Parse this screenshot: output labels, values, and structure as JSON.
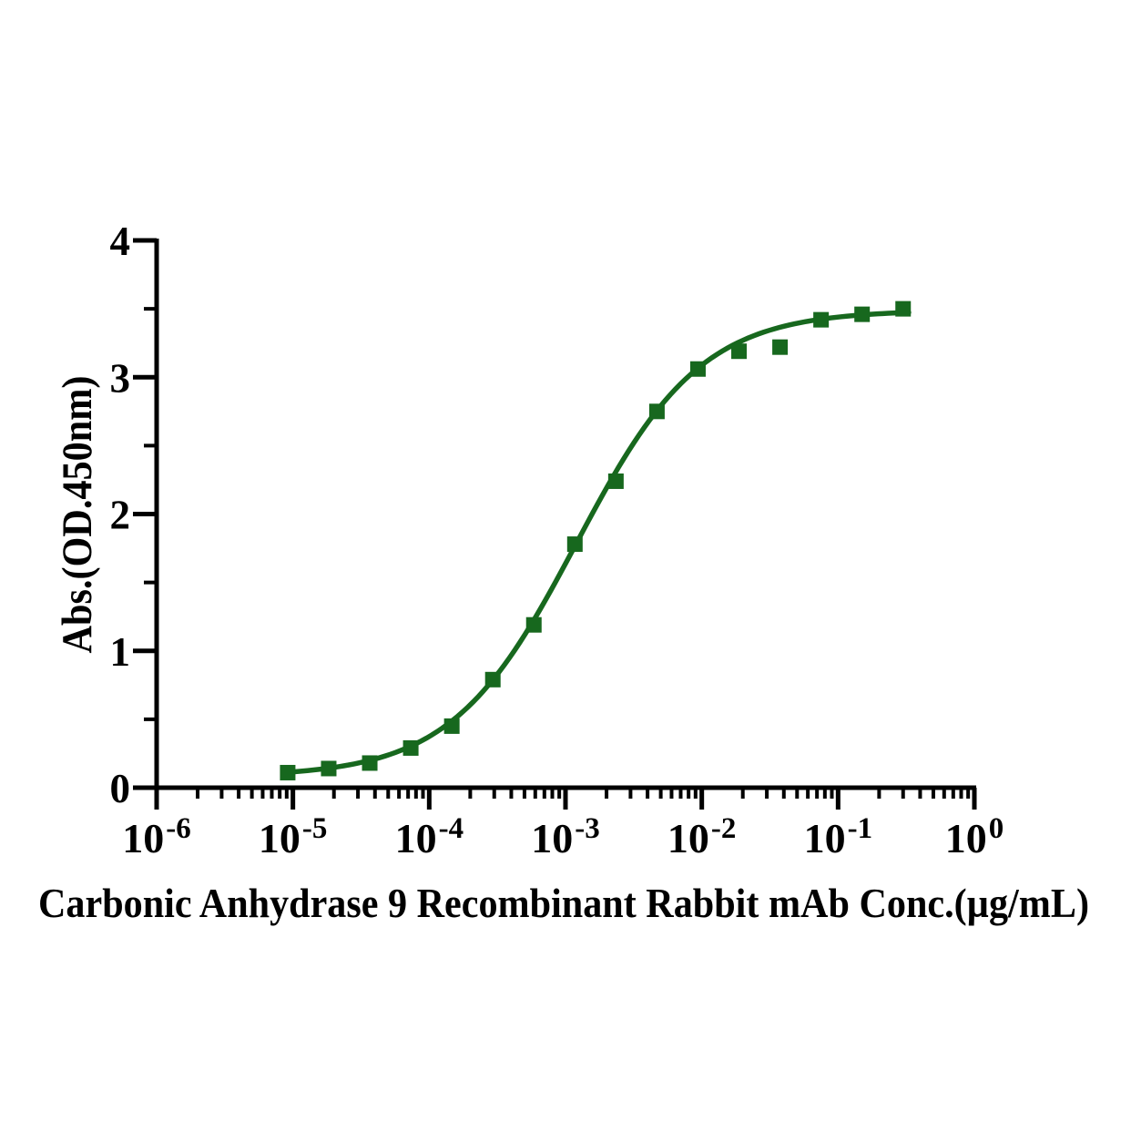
{
  "chart_data": {
    "type": "scatter",
    "title": "",
    "xlabel": "Carbonic Anhydrase 9 Recombinant Rabbit mAb Conc.(µg/mL)",
    "ylabel": "Abs.(OD.450nm)",
    "x_scale": "log10",
    "x_unit": "µg/mL",
    "y_unit": "OD 450nm",
    "xlim_log10": [
      -6,
      0
    ],
    "ylim": [
      0,
      4
    ],
    "x_tick_base": "10",
    "x_major_tick_exponents": [
      -6,
      -5,
      -4,
      -3,
      -2,
      -1,
      0
    ],
    "y_major_ticks": [
      "0",
      "1",
      "2",
      "3",
      "4"
    ],
    "y_minor_ticks": [
      0.5,
      1.5,
      2.5,
      3.5
    ],
    "grid": false,
    "legend_position": "none",
    "axis_color": "#000000",
    "series": [
      {
        "name": "Carbonic Anhydrase 9 Recombinant Rabbit mAb",
        "marker": "filled-square",
        "marker_size_px": 17,
        "color": "#17681e",
        "line_color": "#17681e",
        "x": [
          9.155e-06,
          1.831e-05,
          3.662e-05,
          7.324e-05,
          0.0001465,
          0.000293,
          0.0005859,
          0.001172,
          0.002344,
          0.004688,
          0.009375,
          0.01875,
          0.0375,
          0.075,
          0.15,
          0.3
        ],
        "y": [
          0.11,
          0.14,
          0.18,
          0.29,
          0.45,
          0.79,
          1.19,
          1.78,
          2.24,
          2.75,
          3.06,
          3.19,
          3.22,
          3.42,
          3.46,
          3.5
        ],
        "fit_curve": {
          "model": "4PL",
          "bottom": 0.08,
          "top": 3.49,
          "ec50_ug_ml": 0.0012,
          "hill_slope": 0.95,
          "x_start": 9e-06,
          "x_end": 0.33
        }
      }
    ]
  }
}
